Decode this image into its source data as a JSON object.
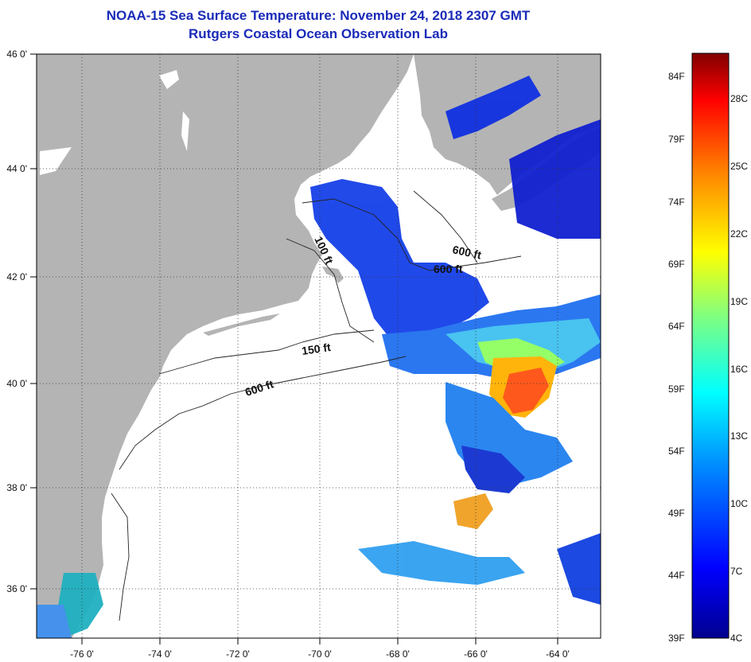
{
  "title": "NOAA-15 Sea Surface Temperature:  November 24, 2018 2307 GMT",
  "subtitle": "Rutgers Coastal Ocean Observation Lab",
  "axes": {
    "lon_labels": [
      "-76 0'",
      "-74 0'",
      "-72 0'",
      "-70 0'",
      "-68 0'",
      "-66 0'",
      "-64 0'"
    ],
    "lat_labels": [
      "46 0'",
      "44 0'",
      "42 0'",
      "40 0'",
      "38 0'",
      "36 0'"
    ]
  },
  "contours": {
    "c1": "600 ft",
    "c2": "600 ft",
    "c3": "100 ft",
    "c4": "150 ft",
    "c5": "600 ft"
  },
  "colorbar": {
    "f_labels": [
      "84F",
      "79F",
      "74F",
      "69F",
      "64F",
      "59F",
      "54F",
      "49F",
      "44F",
      "39F"
    ],
    "c_labels": [
      "28C",
      "25C",
      "22C",
      "19C",
      "16C",
      "13C",
      "10C",
      "7C",
      "4C"
    ]
  },
  "colors": {
    "land": "#b4b4b4",
    "ocean": "#ffffff",
    "title": "#1a2bb8"
  }
}
